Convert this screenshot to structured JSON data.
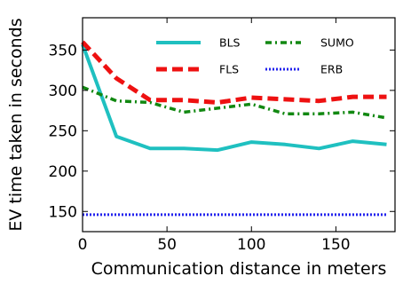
{
  "chart_data": {
    "type": "line",
    "xlabel": "Communication distance in meters",
    "ylabel": "EV time taken in seconds",
    "xlim": [
      0,
      185
    ],
    "ylim": [
      125,
      390
    ],
    "xticks": [
      0,
      50,
      100,
      150
    ],
    "yticks": [
      150,
      200,
      250,
      300,
      350
    ],
    "grid": false,
    "legend_position": "top-right",
    "series": [
      {
        "name": "BLS",
        "color": "#1fc0c0",
        "style": "solid",
        "x": [
          0,
          20,
          40,
          60,
          80,
          100,
          120,
          140,
          160,
          180
        ],
        "y": [
          357,
          243,
          228,
          228,
          226,
          236,
          233,
          228,
          237,
          233
        ]
      },
      {
        "name": "FLS",
        "color": "#ee1111",
        "style": "dashed",
        "x": [
          0,
          20,
          40,
          60,
          80,
          100,
          120,
          140,
          160,
          180
        ],
        "y": [
          360,
          315,
          288,
          288,
          285,
          291,
          289,
          287,
          292,
          292
        ]
      },
      {
        "name": "SUMO",
        "color": "#118811",
        "style": "dashdot",
        "x": [
          0,
          20,
          40,
          60,
          80,
          100,
          120,
          140,
          160,
          180
        ],
        "y": [
          304,
          287,
          285,
          273,
          278,
          283,
          271,
          271,
          273,
          266
        ]
      },
      {
        "name": "ERB",
        "color": "#2222ee",
        "style": "dotted",
        "x": [
          0,
          20,
          40,
          60,
          80,
          100,
          120,
          140,
          160,
          180
        ],
        "y": [
          146,
          146,
          146,
          146,
          146,
          146,
          146,
          146,
          146,
          146
        ]
      }
    ]
  }
}
